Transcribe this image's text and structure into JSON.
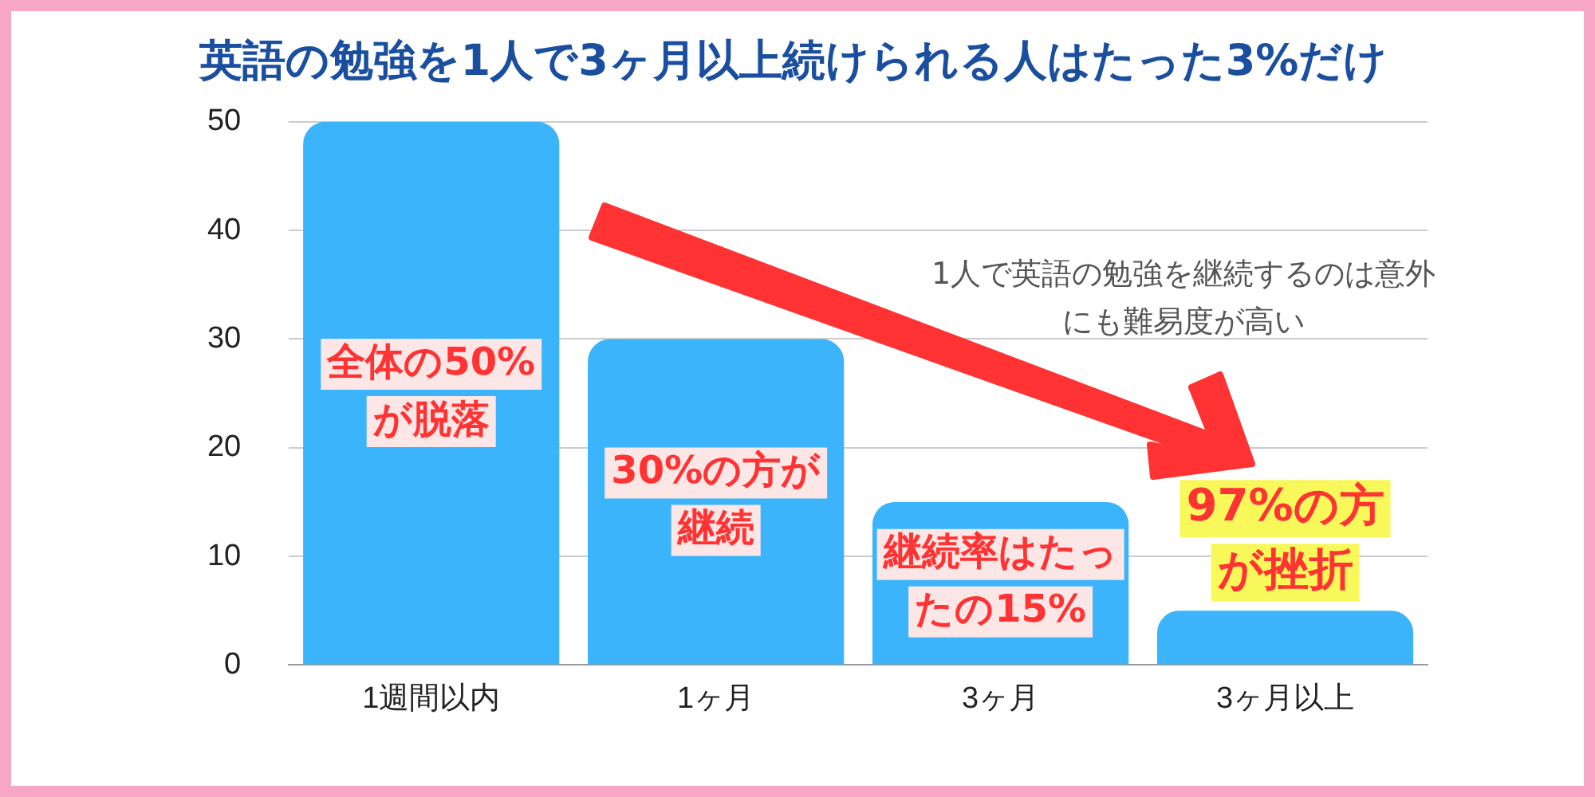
{
  "chart_data": {
    "type": "bar",
    "title": "英語の勉強を1人で3ヶ月以上続けられる人はたった3%だけ",
    "categories": [
      "1週間以内",
      "1ヶ月",
      "3ヶ月",
      "3ヶ月以上"
    ],
    "values": [
      50,
      30,
      15,
      5
    ],
    "color": "#3bb4fc",
    "ylim": [
      0,
      50
    ],
    "yticks": [
      0,
      10,
      20,
      30,
      40,
      50
    ],
    "grid": "y",
    "legend": false,
    "annotations": [
      "全体の50%が脱落",
      "30%の方が継続",
      "継続率はたったの15%",
      "97%の方が挫折",
      "1人で英語の勉強を継続するのは意外にも難易度が高い"
    ]
  }
}
